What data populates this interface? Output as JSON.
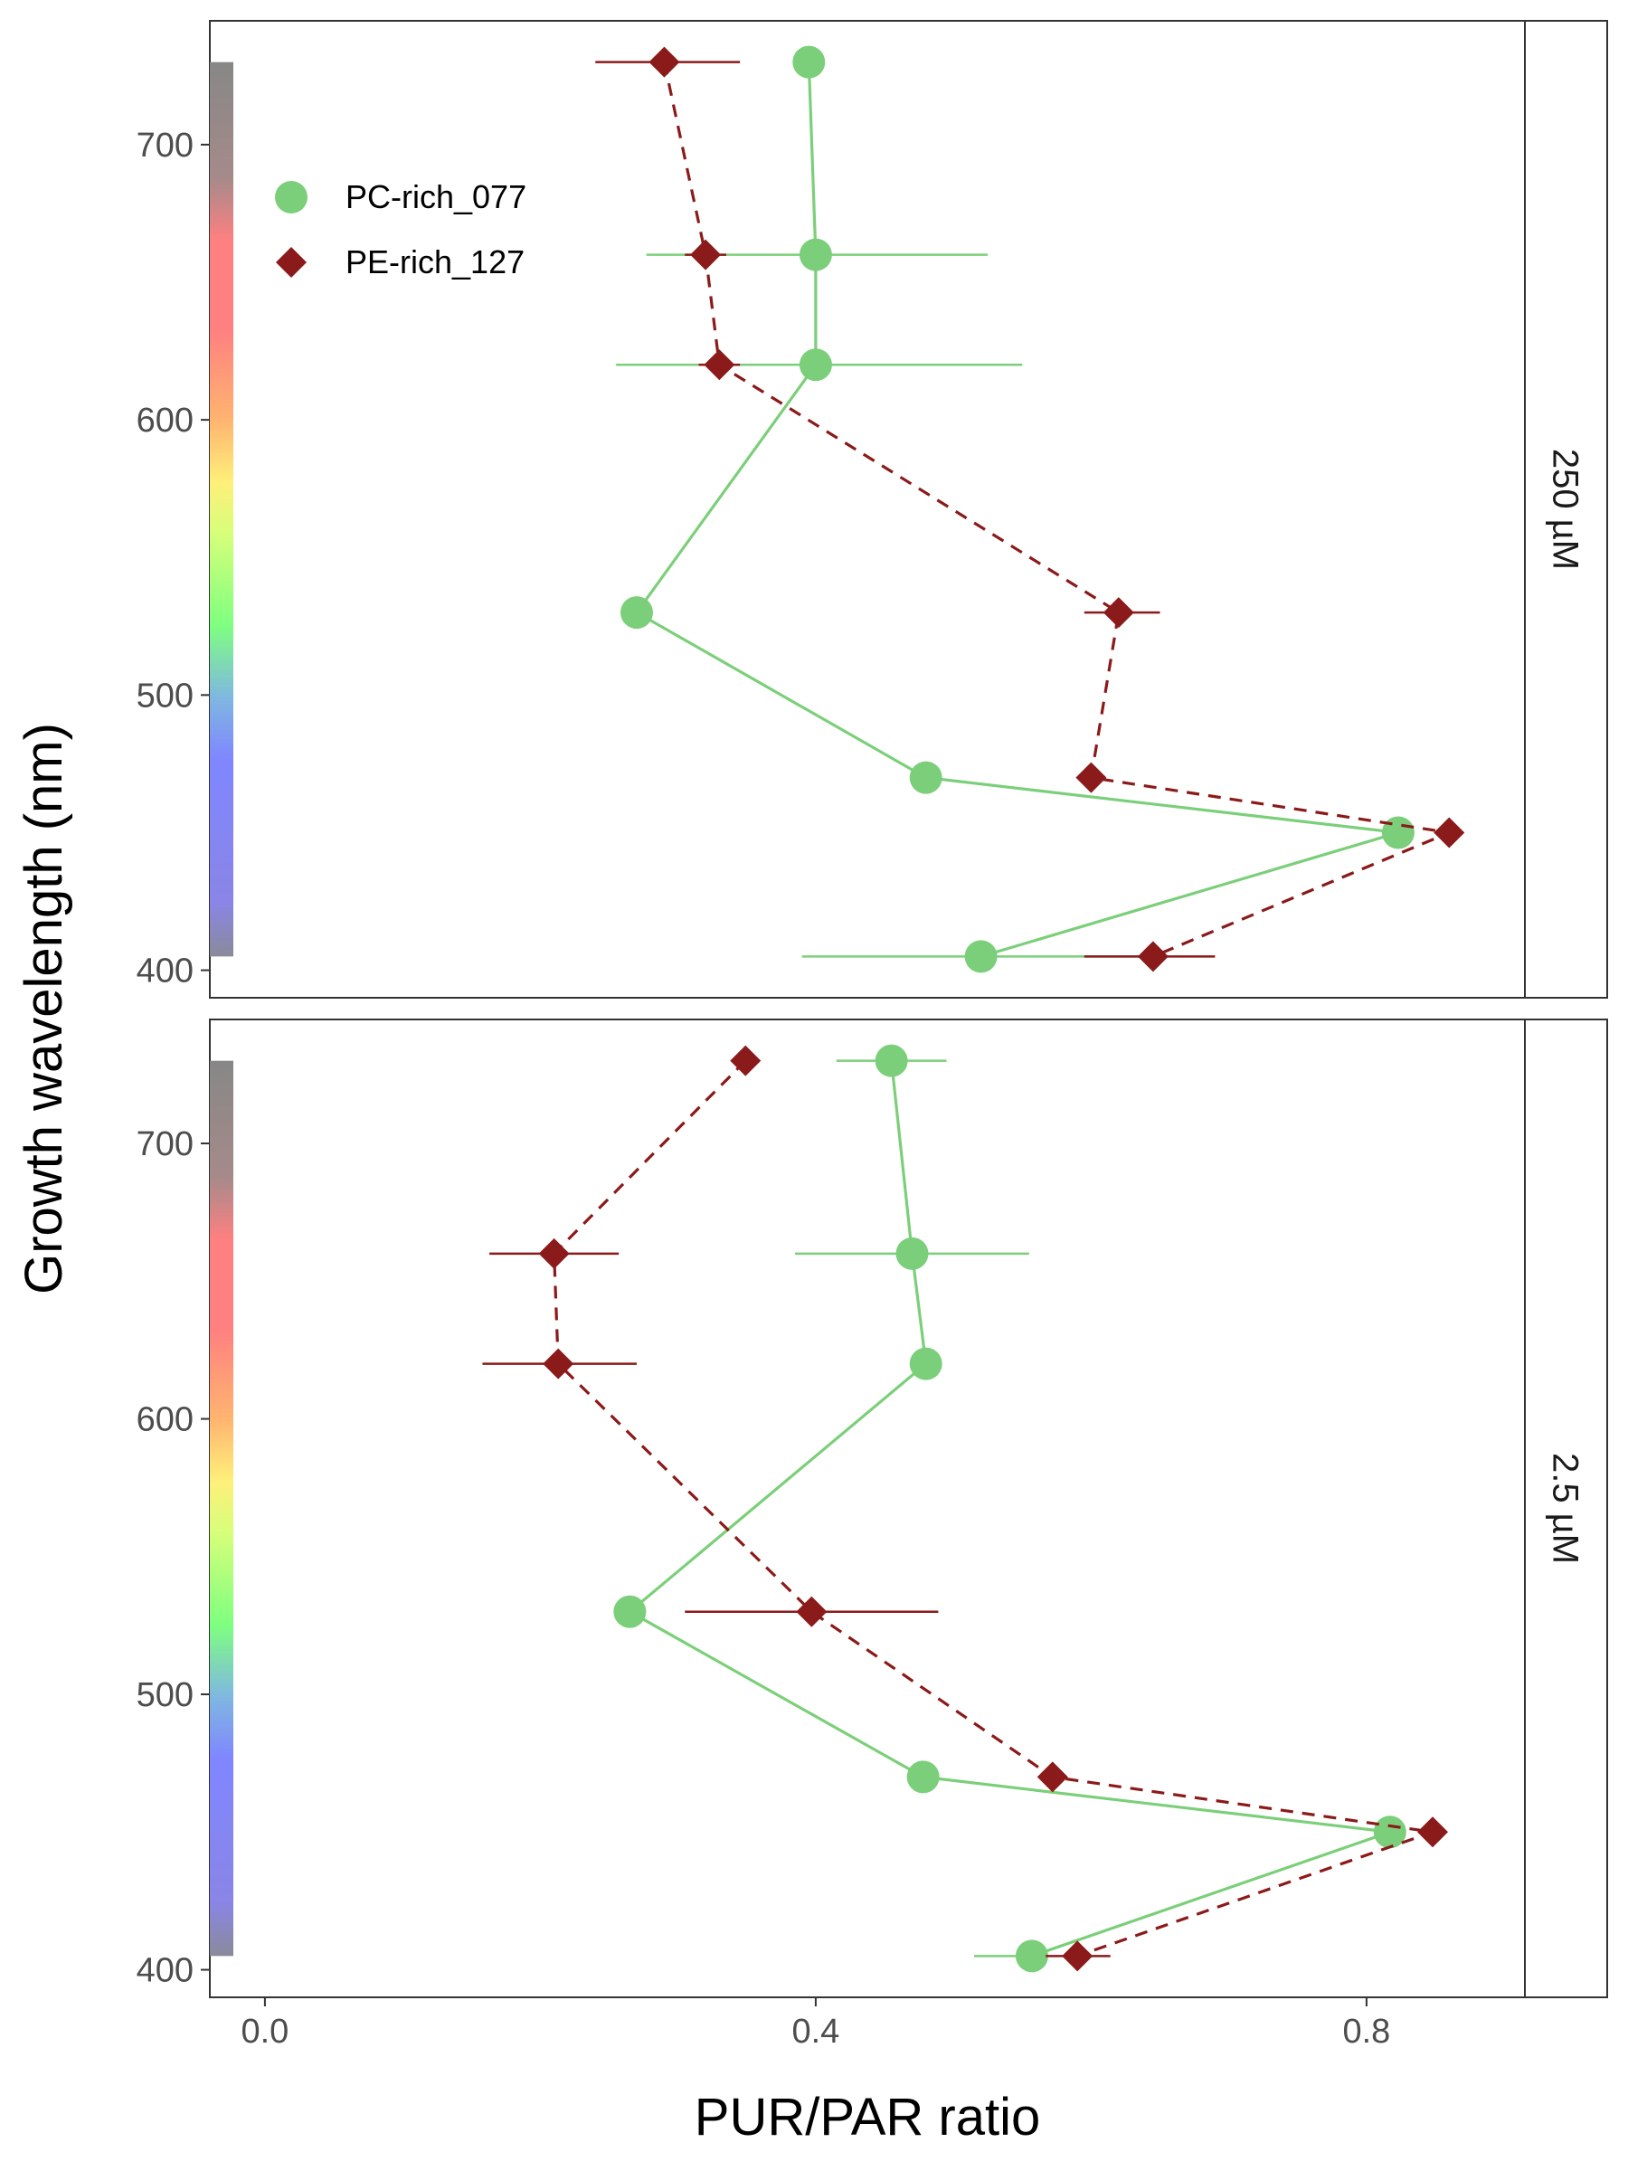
{
  "chart_data": {
    "type": "scatter",
    "xlabel": "PUR/PAR ratio",
    "ylabel": "Growth wavelength (nm)",
    "xlim": [
      -0.04,
      0.915
    ],
    "ylim": [
      390,
      745
    ],
    "x_ticks": [
      "0.0",
      "0.4",
      "0.8"
    ],
    "x_tick_values": [
      0.0,
      0.4,
      0.8
    ],
    "y_ticks": [
      "400",
      "500",
      "600",
      "700"
    ],
    "y_tick_values": [
      400,
      500,
      600,
      700
    ],
    "grid": false,
    "legend_position": "top-left inside first panel",
    "spectrum_bar_range_nm": [
      405,
      730
    ],
    "series_styles": [
      {
        "name": "PC-rich_077",
        "color": "#7ccf7a",
        "marker": "circle",
        "line": "solid"
      },
      {
        "name": "PE-rich_127",
        "color": "#8b1a1a",
        "marker": "diamond",
        "line": "dashed"
      }
    ],
    "panels": [
      {
        "label": "250 µM",
        "series": [
          {
            "name": "PC-rich_077",
            "points": [
              {
                "y": 730,
                "x": 0.395,
                "xmin": 0.395,
                "xmax": 0.395
              },
              {
                "y": 660,
                "x": 0.4,
                "xmin": 0.277,
                "xmax": 0.525
              },
              {
                "y": 620,
                "x": 0.4,
                "xmin": 0.255,
                "xmax": 0.55
              },
              {
                "y": 530,
                "x": 0.27,
                "xmin": 0.27,
                "xmax": 0.27
              },
              {
                "y": 470,
                "x": 0.48,
                "xmin": 0.48,
                "xmax": 0.48
              },
              {
                "y": 450,
                "x": 0.823,
                "xmin": 0.823,
                "xmax": 0.823
              },
              {
                "y": 405,
                "x": 0.52,
                "xmin": 0.39,
                "xmax": 0.645
              }
            ]
          },
          {
            "name": "PE-rich_127",
            "points": [
              {
                "y": 730,
                "x": 0.29,
                "xmin": 0.24,
                "xmax": 0.345
              },
              {
                "y": 660,
                "x": 0.32,
                "xmin": 0.305,
                "xmax": 0.335
              },
              {
                "y": 620,
                "x": 0.33,
                "xmin": 0.315,
                "xmax": 0.345
              },
              {
                "y": 530,
                "x": 0.62,
                "xmin": 0.595,
                "xmax": 0.65
              },
              {
                "y": 470,
                "x": 0.6,
                "xmin": 0.6,
                "xmax": 0.6
              },
              {
                "y": 450,
                "x": 0.86,
                "xmin": 0.86,
                "xmax": 0.86
              },
              {
                "y": 405,
                "x": 0.645,
                "xmin": 0.595,
                "xmax": 0.69
              }
            ]
          }
        ]
      },
      {
        "label": "2.5 µM",
        "series": [
          {
            "name": "PC-rich_077",
            "points": [
              {
                "y": 730,
                "x": 0.455,
                "xmin": 0.415,
                "xmax": 0.495
              },
              {
                "y": 660,
                "x": 0.47,
                "xmin": 0.385,
                "xmax": 0.555
              },
              {
                "y": 620,
                "x": 0.48,
                "xmin": 0.48,
                "xmax": 0.48
              },
              {
                "y": 530,
                "x": 0.265,
                "xmin": 0.265,
                "xmax": 0.265
              },
              {
                "y": 470,
                "x": 0.478,
                "xmin": 0.478,
                "xmax": 0.478
              },
              {
                "y": 450,
                "x": 0.817,
                "xmin": 0.817,
                "xmax": 0.817
              },
              {
                "y": 405,
                "x": 0.557,
                "xmin": 0.515,
                "xmax": 0.557
              }
            ]
          },
          {
            "name": "PE-rich_127",
            "points": [
              {
                "y": 730,
                "x": 0.349,
                "xmin": 0.349,
                "xmax": 0.349
              },
              {
                "y": 660,
                "x": 0.21,
                "xmin": 0.163,
                "xmax": 0.257
              },
              {
                "y": 620,
                "x": 0.213,
                "xmin": 0.158,
                "xmax": 0.27
              },
              {
                "y": 530,
                "x": 0.397,
                "xmin": 0.305,
                "xmax": 0.489
              },
              {
                "y": 470,
                "x": 0.572,
                "xmin": 0.572,
                "xmax": 0.572
              },
              {
                "y": 450,
                "x": 0.848,
                "xmin": 0.848,
                "xmax": 0.848
              },
              {
                "y": 405,
                "x": 0.59,
                "xmin": 0.567,
                "xmax": 0.614
              }
            ]
          }
        ]
      }
    ]
  }
}
